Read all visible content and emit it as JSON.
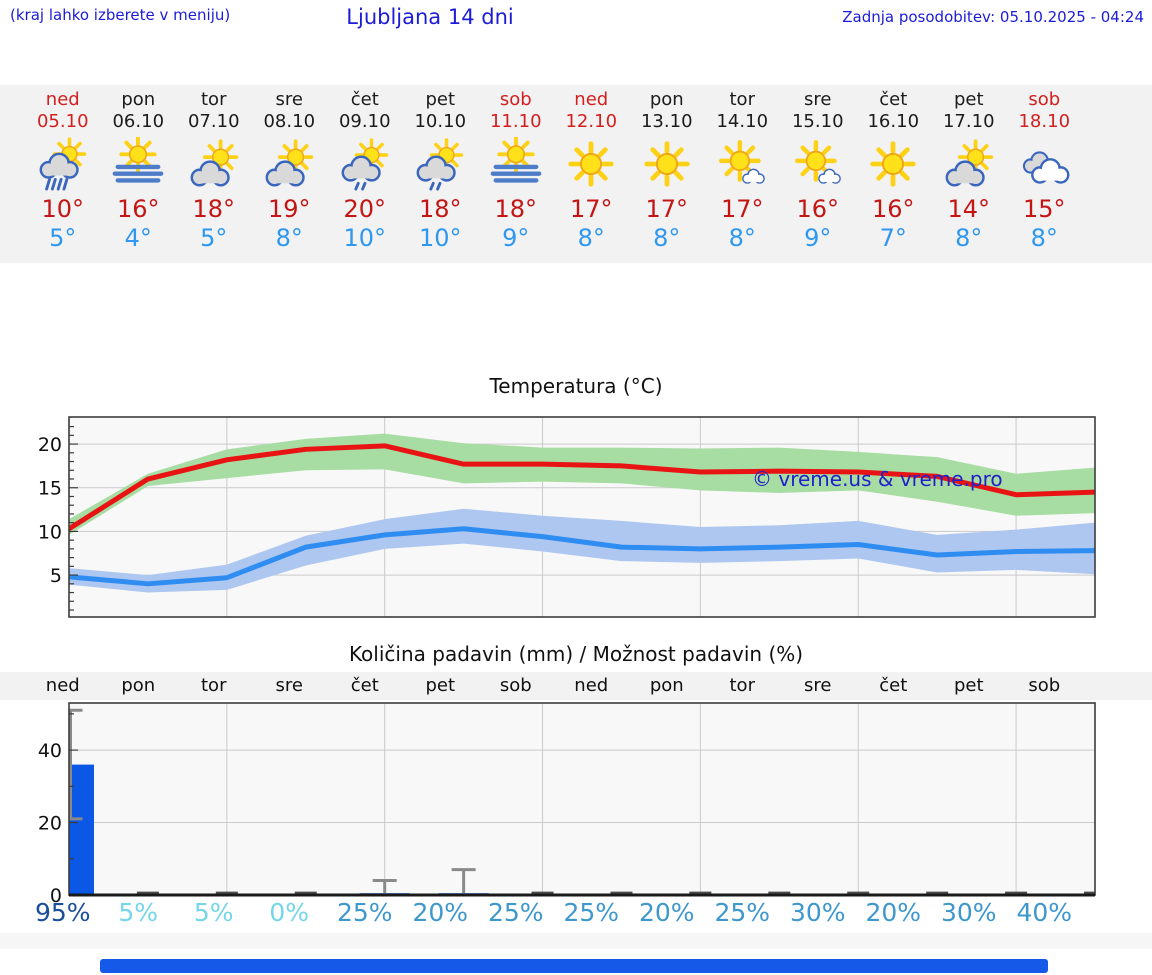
{
  "header": {
    "note_left": "(kraj lahko izberete v meniju)",
    "title": "Ljubljana 14 dni",
    "updated": "Zadnja posodobitev: 05.10.2025 - 04:24"
  },
  "colors": {
    "header_blue": "#1b1bd8",
    "weekend_red": "#d31f1f",
    "high_temp_red": "#c41414",
    "low_temp_blue": "#2e97f0",
    "strip_background": "#f2f2f2",
    "prob_high": "#1b4e9b",
    "prob_medium": "#3e97cd",
    "prob_low": "#74d6e8",
    "footer_bar_blue": "#1459e8"
  },
  "forecast": {
    "days": [
      {
        "name": "ned",
        "date": "05.10",
        "weekend": true,
        "icon": "sun-cloud-rain-icon",
        "high": "10°",
        "low": "5°",
        "precip_prob": "95%",
        "prob_level": "high"
      },
      {
        "name": "pon",
        "date": "06.10",
        "weekend": false,
        "icon": "sun-fog-icon",
        "high": "16°",
        "low": "4°",
        "precip_prob": "5%",
        "prob_level": "low"
      },
      {
        "name": "tor",
        "date": "07.10",
        "weekend": false,
        "icon": "sun-cloud-icon",
        "high": "18°",
        "low": "5°",
        "precip_prob": "5%",
        "prob_level": "low"
      },
      {
        "name": "sre",
        "date": "08.10",
        "weekend": false,
        "icon": "sun-cloud-icon",
        "high": "19°",
        "low": "8°",
        "precip_prob": "0%",
        "prob_level": "low"
      },
      {
        "name": "čet",
        "date": "09.10",
        "weekend": false,
        "icon": "sun-cloud-drizzle-icon",
        "high": "20°",
        "low": "10°",
        "precip_prob": "25%",
        "prob_level": "medium"
      },
      {
        "name": "pet",
        "date": "10.10",
        "weekend": false,
        "icon": "sun-cloud-drizzle-icon",
        "high": "18°",
        "low": "10°",
        "precip_prob": "20%",
        "prob_level": "medium"
      },
      {
        "name": "sob",
        "date": "11.10",
        "weekend": true,
        "icon": "sun-fog-icon",
        "high": "18°",
        "low": "9°",
        "precip_prob": "25%",
        "prob_level": "medium"
      },
      {
        "name": "ned",
        "date": "12.10",
        "weekend": true,
        "icon": "sun-icon",
        "high": "17°",
        "low": "8°",
        "precip_prob": "25%",
        "prob_level": "medium"
      },
      {
        "name": "pon",
        "date": "13.10",
        "weekend": false,
        "icon": "sun-icon",
        "high": "17°",
        "low": "8°",
        "precip_prob": "20%",
        "prob_level": "medium"
      },
      {
        "name": "tor",
        "date": "14.10",
        "weekend": false,
        "icon": "sun-small-cloud-icon",
        "high": "17°",
        "low": "8°",
        "precip_prob": "25%",
        "prob_level": "medium"
      },
      {
        "name": "sre",
        "date": "15.10",
        "weekend": false,
        "icon": "sun-small-cloud-icon",
        "high": "16°",
        "low": "9°",
        "precip_prob": "30%",
        "prob_level": "medium"
      },
      {
        "name": "čet",
        "date": "16.10",
        "weekend": false,
        "icon": "sun-icon",
        "high": "16°",
        "low": "7°",
        "precip_prob": "20%",
        "prob_level": "medium"
      },
      {
        "name": "pet",
        "date": "17.10",
        "weekend": false,
        "icon": "sun-cloud-icon",
        "high": "14°",
        "low": "8°",
        "precip_prob": "30%",
        "prob_level": "medium"
      },
      {
        "name": "sob",
        "date": "18.10",
        "weekend": true,
        "icon": "clouds-icon",
        "high": "15°",
        "low": "8°",
        "precip_prob": "40%",
        "prob_level": "medium"
      }
    ]
  },
  "chart_data": [
    {
      "type": "line",
      "title": "Temperatura (°C)",
      "categories": [
        "ned",
        "pon",
        "tor",
        "sre",
        "čet",
        "pet",
        "sob",
        "ned",
        "pon",
        "tor",
        "sre",
        "čet",
        "pet",
        "sob"
      ],
      "series": [
        {
          "name": "max-temperature",
          "color": "#e81414",
          "values": [
            10.3,
            16.0,
            18.2,
            19.4,
            19.8,
            17.7,
            17.7,
            17.5,
            16.8,
            16.9,
            16.8,
            16.3,
            14.2,
            14.5
          ]
        },
        {
          "name": "min-temperature",
          "color": "#2f8df2",
          "values": [
            4.8,
            4.0,
            4.7,
            8.2,
            9.6,
            10.3,
            9.4,
            8.2,
            8.0,
            8.2,
            8.5,
            7.3,
            7.7,
            7.8
          ]
        }
      ],
      "bands": [
        {
          "name": "max-temperature-range",
          "color": "#a7dca2",
          "upper": [
            11.4,
            16.6,
            19.4,
            20.6,
            21.2,
            20.1,
            19.6,
            19.6,
            19.5,
            19.6,
            19.1,
            18.5,
            16.6,
            17.3
          ],
          "lower": [
            9.6,
            15.2,
            16.1,
            17.0,
            17.1,
            15.5,
            15.7,
            15.5,
            14.7,
            14.4,
            14.7,
            13.4,
            11.8,
            12.1
          ]
        },
        {
          "name": "min-temperature-range",
          "color": "#aec7f0",
          "upper": [
            5.8,
            5.0,
            6.2,
            9.5,
            11.4,
            12.6,
            11.8,
            11.2,
            10.5,
            10.7,
            11.2,
            9.6,
            10.2,
            11.0
          ],
          "lower": [
            3.9,
            3.0,
            3.3,
            6.1,
            8.0,
            8.6,
            7.7,
            6.6,
            6.4,
            6.6,
            6.9,
            5.3,
            5.6,
            5.1
          ]
        }
      ],
      "yticks": [
        5,
        10,
        15,
        20
      ],
      "ylim": [
        0.2,
        23.1
      ],
      "grid": true,
      "watermark": "© vreme.us & vreme.pro"
    },
    {
      "type": "bar",
      "title": "Količina padavin (mm) / Možnost padavin (%)",
      "categories": [
        "ned",
        "pon",
        "tor",
        "sre",
        "čet",
        "pet",
        "sob",
        "ned",
        "pon",
        "tor",
        "sre",
        "čet",
        "pet",
        "sob"
      ],
      "values_mm": [
        36,
        0,
        0,
        0,
        0.5,
        0.5,
        0,
        0,
        0,
        0,
        0,
        0,
        0,
        0
      ],
      "whiskers": [
        {
          "day": 0,
          "from": 21,
          "to": 51,
          "caps": "both"
        },
        {
          "day": 4,
          "from": 0.5,
          "to": 4,
          "caps": "top"
        },
        {
          "day": 5,
          "from": 0.5,
          "to": 7,
          "caps": "top"
        }
      ],
      "probabilities_pct": [
        95,
        5,
        5,
        0,
        25,
        20,
        25,
        25,
        20,
        25,
        30,
        20,
        30,
        40
      ],
      "bar_color": "#0b57e6",
      "yticks": [
        0,
        20,
        40
      ],
      "ylim": [
        0,
        53
      ],
      "grid": true
    }
  ]
}
